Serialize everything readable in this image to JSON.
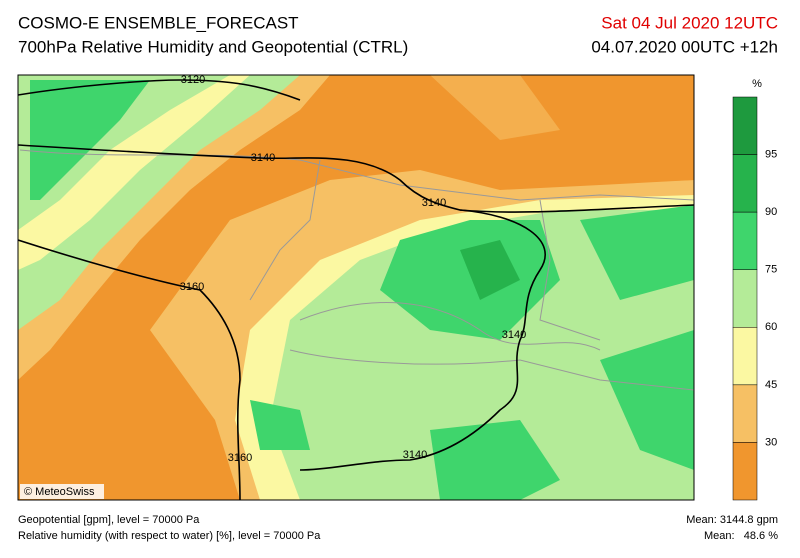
{
  "header": {
    "title": "COSMO-E ENSEMBLE_FORECAST",
    "subtitle": "700hPa Relative Humidity and Geopotential (CTRL)",
    "valid": "Sat 04 Jul 2020 12UTC",
    "run": "04.07.2020 00UTC +12h"
  },
  "legend": {
    "unit": "%",
    "levels": [
      95,
      90,
      75,
      60,
      45,
      30
    ],
    "colors": [
      "#1e9a3e",
      "#26b34c",
      "#3fd56c",
      "#b4eb98",
      "#fbf8a2",
      "#f6c064",
      "#f0962e"
    ]
  },
  "contours": {
    "labels": [
      3120,
      3140,
      3140,
      3160,
      3140,
      3160,
      3140
    ]
  },
  "copyright": "© MeteoSwiss",
  "footer": {
    "lines": [
      "Geopotential [gpm], level = 70000 Pa",
      "Relative humidity (with respect to water) [%], level = 70000 Pa"
    ],
    "stats": [
      "Mean: 3144.8 gpm",
      "Mean:   48.6 %"
    ]
  }
}
